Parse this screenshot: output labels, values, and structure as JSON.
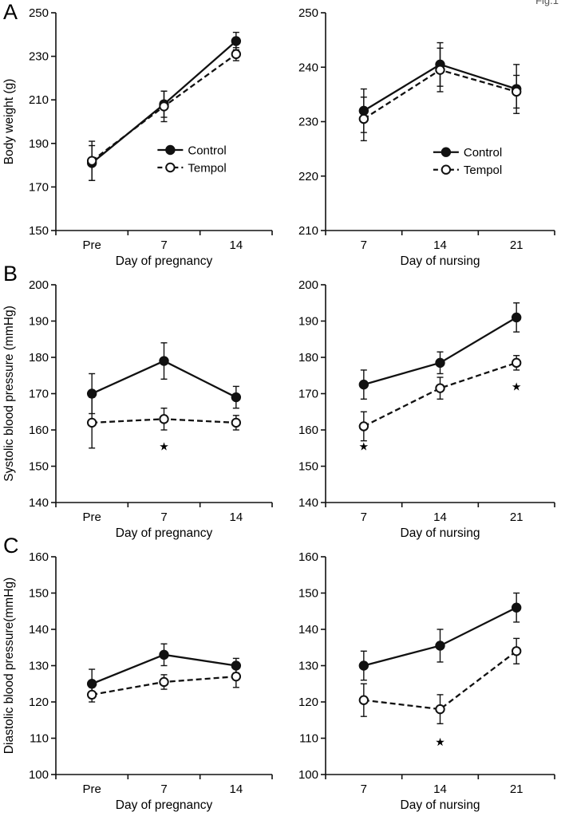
{
  "figure_label": "Fig.1",
  "panels": [
    {
      "label": "A"
    },
    {
      "label": "B"
    },
    {
      "label": "C"
    }
  ],
  "colors": {
    "line": "#111111",
    "text": "#000000",
    "background": "#ffffff"
  },
  "chart_data": [
    {
      "id": "a_left",
      "type": "line",
      "categories": [
        "Pre",
        "7",
        "14"
      ],
      "xlabel": "Day of pregnancy",
      "ylabel": "Body weight (g)",
      "ylim": [
        150,
        250
      ],
      "yticks": [
        150,
        170,
        190,
        210,
        230,
        250
      ],
      "grid": false,
      "series": [
        {
          "name": "Control",
          "marker": "filled",
          "line": "solid",
          "values": [
            181,
            208,
            237
          ],
          "errors": [
            8,
            6,
            4
          ]
        },
        {
          "name": "Tempol",
          "marker": "open",
          "line": "dashed",
          "values": [
            182,
            207,
            231
          ],
          "errors": [
            9,
            7,
            3
          ]
        }
      ],
      "legend": {
        "show": true,
        "fx": 0.47,
        "fy": 0.63
      },
      "annotations": []
    },
    {
      "id": "a_right",
      "type": "line",
      "categories": [
        "7",
        "14",
        "21"
      ],
      "xlabel": "Day of nursing",
      "ylabel": "",
      "ylim": [
        210,
        250
      ],
      "yticks": [
        210,
        220,
        230,
        240,
        250
      ],
      "grid": false,
      "series": [
        {
          "name": "Control",
          "marker": "filled",
          "line": "solid",
          "values": [
            232,
            240.5,
            236
          ],
          "errors": [
            4,
            4,
            4.5
          ]
        },
        {
          "name": "Tempol",
          "marker": "open",
          "line": "dashed",
          "values": [
            230.5,
            239.5,
            235.5
          ],
          "errors": [
            4,
            4,
            3
          ]
        }
      ],
      "legend": {
        "show": true,
        "fx": 0.47,
        "fy": 0.64
      },
      "annotations": []
    },
    {
      "id": "b_left",
      "type": "line",
      "categories": [
        "Pre",
        "7",
        "14"
      ],
      "xlabel": "Day of pregnancy",
      "ylabel": "Systolic blood pressure (mmHg)",
      "ylim": [
        140,
        200
      ],
      "yticks": [
        140,
        150,
        160,
        170,
        180,
        190,
        200
      ],
      "grid": false,
      "series": [
        {
          "name": "Control",
          "marker": "filled",
          "line": "solid",
          "values": [
            170,
            179,
            169
          ],
          "errors": [
            5.5,
            5,
            3
          ]
        },
        {
          "name": "Tempol",
          "marker": "open",
          "line": "dashed",
          "values": [
            162,
            163,
            162
          ],
          "errors": [
            7,
            3,
            2
          ]
        }
      ],
      "legend": {
        "show": false
      },
      "annotations": [
        {
          "xi": 1,
          "y": 155.5,
          "symbol": "★"
        }
      ]
    },
    {
      "id": "b_right",
      "type": "line",
      "categories": [
        "7",
        "14",
        "21"
      ],
      "xlabel": "Day of nursing",
      "ylabel": "",
      "ylim": [
        140,
        200
      ],
      "yticks": [
        140,
        150,
        160,
        170,
        180,
        190,
        200
      ],
      "grid": false,
      "series": [
        {
          "name": "Control",
          "marker": "filled",
          "line": "solid",
          "values": [
            172.5,
            178.5,
            191
          ],
          "errors": [
            4,
            3,
            4
          ]
        },
        {
          "name": "Tempol",
          "marker": "open",
          "line": "dashed",
          "values": [
            161,
            171.5,
            178.5
          ],
          "errors": [
            4,
            3,
            2
          ]
        }
      ],
      "legend": {
        "show": false
      },
      "annotations": [
        {
          "xi": 0,
          "y": 155.5,
          "symbol": "★"
        },
        {
          "xi": 2,
          "y": 172,
          "symbol": "★"
        }
      ]
    },
    {
      "id": "c_left",
      "type": "line",
      "categories": [
        "Pre",
        "7",
        "14"
      ],
      "xlabel": "Day of pregnancy",
      "ylabel": "Diastolic blood pressure(mmHg)",
      "ylim": [
        100,
        160
      ],
      "yticks": [
        100,
        110,
        120,
        130,
        140,
        150,
        160
      ],
      "grid": false,
      "series": [
        {
          "name": "Control",
          "marker": "filled",
          "line": "solid",
          "values": [
            125,
            133,
            130
          ],
          "errors": [
            4,
            3,
            2
          ]
        },
        {
          "name": "Tempol",
          "marker": "open",
          "line": "dashed",
          "values": [
            122,
            125.5,
            127
          ],
          "errors": [
            2,
            2,
            3
          ]
        }
      ],
      "legend": {
        "show": false
      },
      "annotations": []
    },
    {
      "id": "c_right",
      "type": "line",
      "categories": [
        "7",
        "14",
        "21"
      ],
      "xlabel": "Day of nursing",
      "ylabel": "",
      "ylim": [
        100,
        160
      ],
      "yticks": [
        100,
        110,
        120,
        130,
        140,
        150,
        160
      ],
      "grid": false,
      "series": [
        {
          "name": "Control",
          "marker": "filled",
          "line": "solid",
          "values": [
            130,
            135.5,
            146
          ],
          "errors": [
            4,
            4.5,
            4
          ]
        },
        {
          "name": "Tempol",
          "marker": "open",
          "line": "dashed",
          "values": [
            120.5,
            118,
            134
          ],
          "errors": [
            4.5,
            4,
            3.5
          ]
        }
      ],
      "legend": {
        "show": false
      },
      "annotations": [
        {
          "xi": 1,
          "y": 109,
          "symbol": "★"
        }
      ]
    }
  ]
}
